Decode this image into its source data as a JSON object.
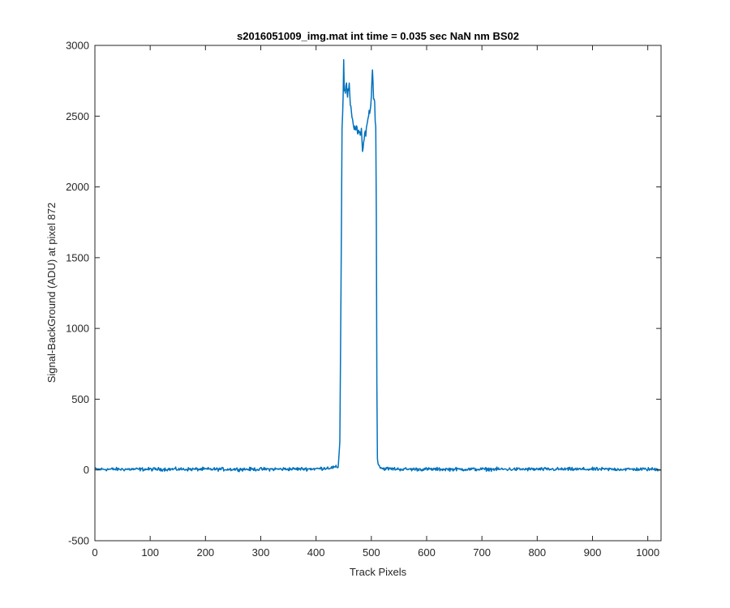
{
  "chart_data": {
    "type": "line",
    "title": "s2016051009_img.mat int time = 0.035 sec  NaN nm BS02",
    "xlabel": "Track Pixels",
    "ylabel": "Signal-BackGround (ADU) at pixel 872",
    "xlim": [
      0,
      1024
    ],
    "ylim": [
      -500,
      3000
    ],
    "xticks": [
      0,
      100,
      200,
      300,
      400,
      500,
      600,
      700,
      800,
      900,
      1000
    ],
    "yticks": [
      -500,
      0,
      500,
      1000,
      1500,
      2000,
      2500,
      3000
    ],
    "grid": false,
    "series": [
      {
        "color": "#0072BD",
        "noise_amplitude": 12,
        "x": [
          0,
          100,
          200,
          300,
          400,
          440,
          443,
          445,
          447,
          449,
          450,
          451,
          453,
          455,
          457,
          460,
          463,
          466,
          470,
          474,
          478,
          482,
          484,
          488,
          492,
          495,
          498,
          500,
          502,
          504,
          506,
          508,
          509,
          510,
          511,
          513,
          516,
          520,
          560,
          600,
          700,
          800,
          900,
          1000,
          1024
        ],
        "y": [
          5,
          5,
          5,
          5,
          8,
          20,
          200,
          1200,
          2400,
          2650,
          2880,
          2700,
          2680,
          2720,
          2650,
          2700,
          2550,
          2450,
          2400,
          2420,
          2380,
          2370,
          2250,
          2360,
          2450,
          2500,
          2550,
          2650,
          2820,
          2650,
          2600,
          2400,
          1800,
          600,
          80,
          40,
          20,
          10,
          5,
          5,
          5,
          5,
          5,
          5,
          5
        ]
      }
    ]
  }
}
